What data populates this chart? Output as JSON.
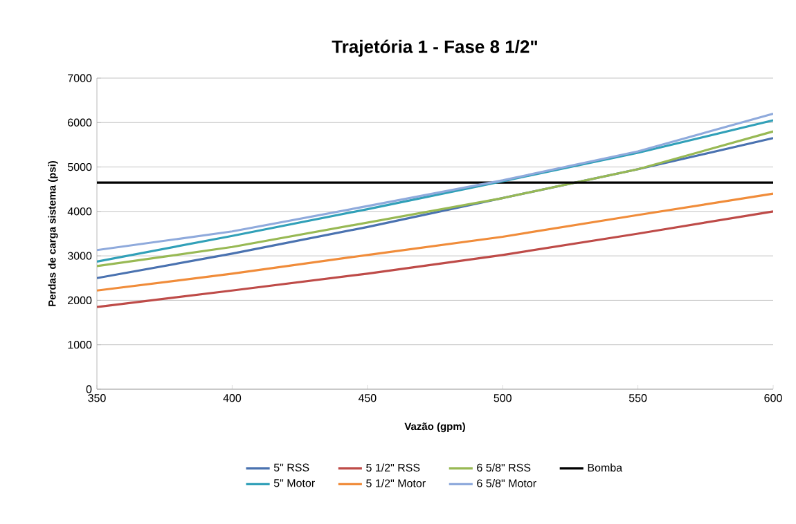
{
  "chart_data": {
    "type": "line",
    "title": "Trajetória 1 - Fase 8 1/2\"",
    "xlabel": "Vazão (gpm)",
    "ylabel": "Perdas de carga sistema (psi)",
    "x": [
      350,
      400,
      450,
      500,
      550,
      600
    ],
    "xlim": [
      350,
      600
    ],
    "xticks": [
      350,
      400,
      450,
      500,
      550,
      600
    ],
    "ylim": [
      0,
      7000
    ],
    "yticks": [
      0,
      1000,
      2000,
      3000,
      4000,
      5000,
      6000,
      7000
    ],
    "grid": "y",
    "legend": "bottom",
    "marker": "none",
    "line_style": "solid",
    "series": [
      {
        "name": "5\" RSS",
        "color": "#4a72b0",
        "values": [
          2500,
          3050,
          3650,
          4300,
          4950,
          5650
        ]
      },
      {
        "name": "5 1/2\" RSS",
        "color": "#be4b48",
        "values": [
          1850,
          2220,
          2600,
          3020,
          3500,
          4000
        ]
      },
      {
        "name": "6 5/8\" RSS",
        "color": "#98b954",
        "values": [
          2770,
          3200,
          3750,
          4300,
          4950,
          5800
        ]
      },
      {
        "name": "Bomba",
        "color": "#000000",
        "x": [
          350,
          600
        ],
        "values": [
          4650,
          4650
        ]
      },
      {
        "name": "5\" Motor",
        "color": "#31a0b8",
        "values": [
          2870,
          3450,
          4050,
          4680,
          5320,
          6050
        ]
      },
      {
        "name": "5 1/2\" Motor",
        "color": "#f08c3a",
        "values": [
          2220,
          2600,
          3020,
          3430,
          3920,
          4400
        ]
      },
      {
        "name": "6 5/8\" Motor",
        "color": "#8faadc",
        "values": [
          3130,
          3550,
          4120,
          4700,
          5350,
          6200
        ]
      }
    ]
  }
}
